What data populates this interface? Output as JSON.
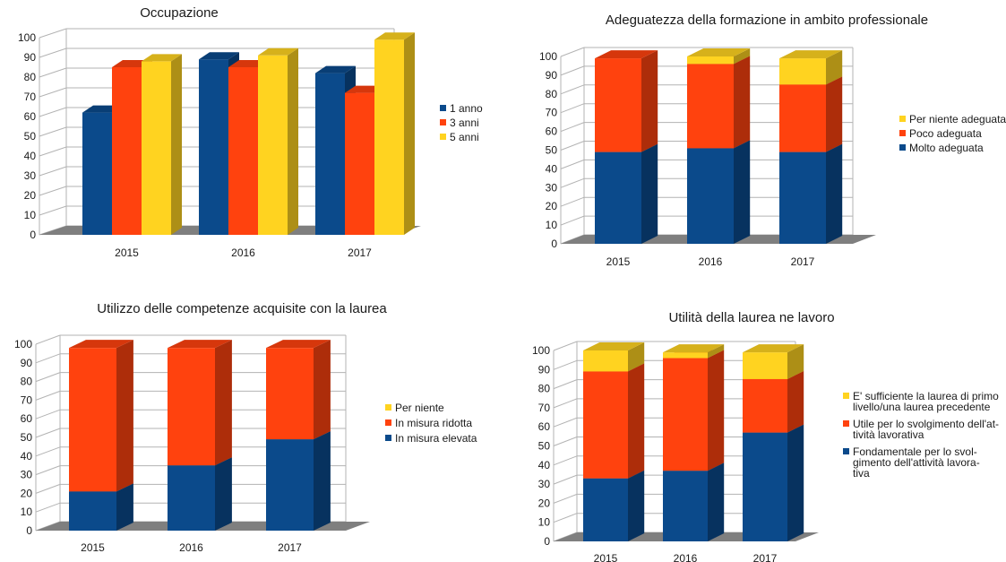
{
  "colors": {
    "blue": "#0b4a8b",
    "red": "#ff420e",
    "yellow": "#ffd320",
    "grid": "#b3b3b3",
    "floor": "#7f7f7f"
  },
  "chart_data": [
    {
      "type": "bar",
      "title": "Occupazione",
      "categories": [
        "2015",
        "2016",
        "2017"
      ],
      "series": [
        {
          "name": "1 anno",
          "color": "blue",
          "values": [
            62,
            89,
            82
          ]
        },
        {
          "name": "3 anni",
          "color": "red",
          "values": [
            85,
            85,
            72
          ]
        },
        {
          "name": "5 anni",
          "color": "yellow",
          "values": [
            88,
            91,
            99
          ]
        }
      ],
      "yticks": [
        "0",
        "10",
        "20",
        "30",
        "40",
        "50",
        "60",
        "70",
        "80",
        "90",
        "100"
      ],
      "ylim": [
        0,
        100
      ],
      "grid": true,
      "legend_position": "right",
      "legend": [
        "1 anno",
        "3 anni",
        "5 anni"
      ]
    },
    {
      "type": "bar",
      "stacked": true,
      "title": "Adeguatezza della formazione in ambito professionale",
      "categories": [
        "2015",
        "2016",
        "2017"
      ],
      "series": [
        {
          "name": "Molto adeguata",
          "color": "blue",
          "values": [
            49,
            51,
            49
          ]
        },
        {
          "name": "Poco adeguata",
          "color": "red",
          "values": [
            50,
            45,
            36
          ]
        },
        {
          "name": "Per niente adeguata",
          "color": "yellow",
          "values": [
            0,
            4,
            14
          ]
        }
      ],
      "yticks": [
        "0",
        "10",
        "20",
        "30",
        "40",
        "50",
        "60",
        "70",
        "80",
        "90",
        "100"
      ],
      "ylim": [
        0,
        100
      ],
      "grid": true,
      "legend_position": "right",
      "legend": [
        "Per niente adeguata",
        "Poco adeguata",
        "Molto adeguata"
      ]
    },
    {
      "type": "bar",
      "stacked": true,
      "title": "Utilizzo delle competenze acquisite con la laurea",
      "categories": [
        "2015",
        "2016",
        "2017"
      ],
      "series": [
        {
          "name": "In misura elevata",
          "color": "blue",
          "values": [
            21,
            35,
            49
          ]
        },
        {
          "name": "In misura ridotta",
          "color": "red",
          "values": [
            77,
            63,
            49
          ]
        },
        {
          "name": "Per niente",
          "color": "yellow",
          "values": [
            0,
            0,
            0
          ]
        }
      ],
      "yticks": [
        "0",
        "10",
        "20",
        "30",
        "40",
        "50",
        "60",
        "70",
        "80",
        "90",
        "100"
      ],
      "ylim": [
        0,
        100
      ],
      "grid": true,
      "legend_position": "right",
      "legend": [
        "Per niente",
        "In misura ridotta",
        "In misura elevata"
      ]
    },
    {
      "type": "bar",
      "stacked": true,
      "title": "Utilità della laurea ne lavoro",
      "categories": [
        "2015",
        "2016",
        "2017"
      ],
      "series": [
        {
          "name": "Fondamentale per lo svolgimento dell'attività lavorativa",
          "color": "blue",
          "values": [
            33,
            37,
            57
          ]
        },
        {
          "name": "Utile per lo svolgimento dell'attività lavorativa",
          "color": "red",
          "values": [
            56,
            59,
            28
          ]
        },
        {
          "name": "E' sufficiente la laurea di primo livello/una laurea precedente",
          "color": "yellow",
          "values": [
            11,
            3,
            14
          ]
        }
      ],
      "yticks": [
        "0",
        "10",
        "20",
        "30",
        "40",
        "50",
        "60",
        "70",
        "80",
        "90",
        "100"
      ],
      "ylim": [
        0,
        100
      ],
      "grid": true,
      "legend_position": "right",
      "legend": [
        [
          "E' sufficiente la laurea di primo",
          "livello/una laurea precedente"
        ],
        [
          "Utile per lo svolgimento dell'at-",
          "tività lavorativa"
        ],
        [
          "Fondamentale per lo svol-",
          "gimento dell'attività lavora-",
          "tiva"
        ]
      ]
    }
  ]
}
